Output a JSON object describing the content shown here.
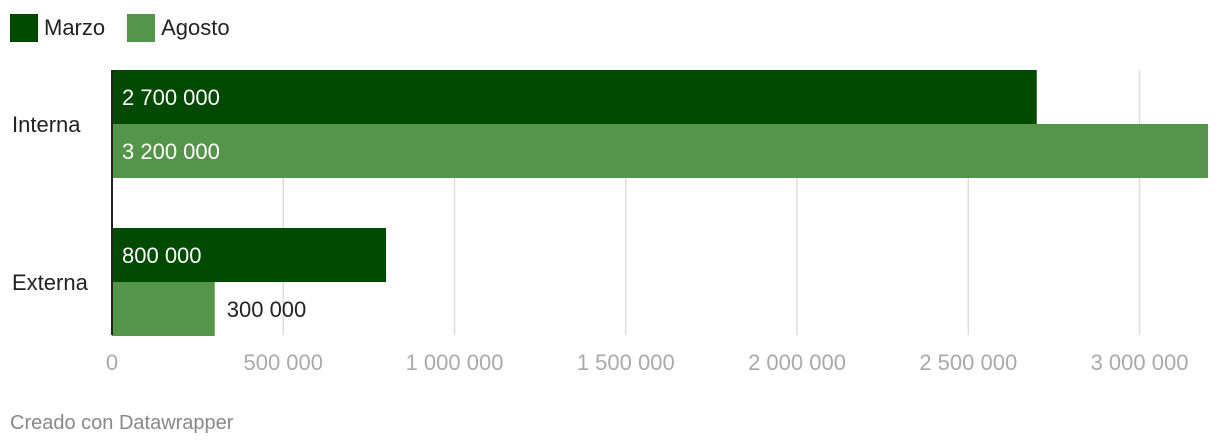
{
  "chart_data": {
    "type": "bar",
    "orientation": "horizontal",
    "categories": [
      "Interna",
      "Externa"
    ],
    "series": [
      {
        "name": "Marzo",
        "color": "#004a00",
        "values": [
          2700000,
          800000
        ],
        "labels": [
          "2 700 000",
          "800 000"
        ]
      },
      {
        "name": "Agosto",
        "color": "#55954a",
        "values": [
          3200000,
          300000
        ],
        "labels": [
          "3 200 000",
          "300 000"
        ]
      }
    ],
    "xlim": [
      0,
      3200000
    ],
    "xticks": [
      0,
      500000,
      1000000,
      1500000,
      2000000,
      2500000,
      3000000
    ],
    "xtick_labels": [
      "0",
      "500 000",
      "1 000 000",
      "1 500 000",
      "2 000 000",
      "2 500 000",
      "3 000 000"
    ],
    "grid": true,
    "legend_position": "top-left",
    "title": "",
    "xlabel": "",
    "ylabel": ""
  },
  "footer": {
    "credit": "Creado con Datawrapper"
  }
}
